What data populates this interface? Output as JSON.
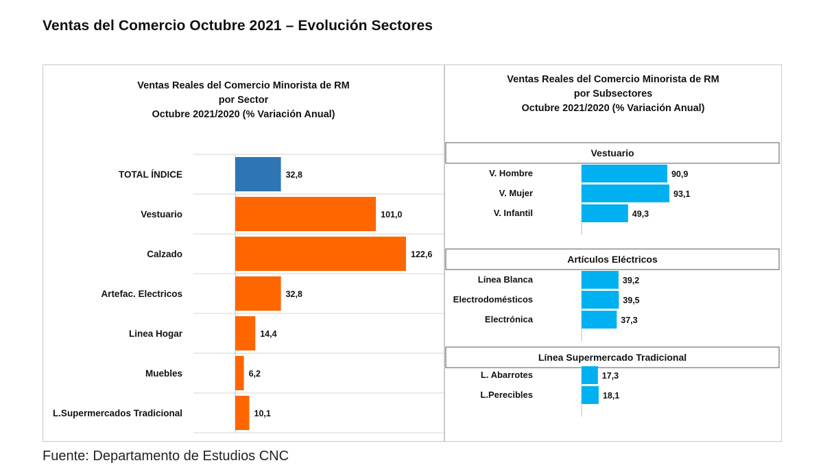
{
  "page": {
    "title": "Ventas del Comercio Octubre 2021 – Evolución Sectores",
    "source": "Fuente: Departamento de Estudios CNC"
  },
  "chart_data": [
    {
      "type": "bar",
      "orientation": "horizontal",
      "title": [
        "Ventas Reales del Comercio Minorista de RM",
        "por Sector",
        "Octubre 2021/2020 (% Variación Anual)"
      ],
      "categories": [
        "TOTAL ÍNDICE",
        "Vestuario",
        "Calzado",
        "Artefac. Electricos",
        "Linea Hogar",
        "Muebles",
        "L.Supermercados Tradicional"
      ],
      "values": [
        32.8,
        101.0,
        122.6,
        32.8,
        14.4,
        6.2,
        10.1
      ],
      "value_labels": [
        "32,8",
        "101,0",
        "122,6",
        "32,8",
        "14,4",
        "6,2",
        "10,1"
      ],
      "colors": [
        "#2e75b6",
        "#ff6600",
        "#ff6600",
        "#ff6600",
        "#ff6600",
        "#ff6600",
        "#ff6600"
      ],
      "xlim": [
        0,
        135
      ],
      "grid": true,
      "legend": "none"
    },
    {
      "type": "bar",
      "orientation": "horizontal",
      "title": [
        "Ventas Reales del Comercio Minorista de RM",
        "por Subsectores",
        "Octubre 2021/2020 (% Variación Anual)"
      ],
      "color": "#00b0f0",
      "xlim": [
        0,
        135
      ],
      "legend": "none",
      "groups": [
        {
          "name": "Vestuario",
          "categories": [
            "V. Hombre",
            "V. Mujer",
            "V. Infantil"
          ],
          "values": [
            90.9,
            93.1,
            49.3
          ],
          "value_labels": [
            "90,9",
            "93,1",
            "49,3"
          ]
        },
        {
          "name": "Artículos Eléctricos",
          "categories": [
            "Línea Blanca",
            "Electrodomésticos",
            "Electrónica"
          ],
          "values": [
            39.2,
            39.5,
            37.3
          ],
          "value_labels": [
            "39,2",
            "39,5",
            "37,3"
          ]
        },
        {
          "name": "Línea Supermercado Tradicional",
          "categories": [
            "L. Abarrotes",
            "L.Perecibles"
          ],
          "values": [
            17.3,
            18.1
          ],
          "value_labels": [
            "17,3",
            "18,1"
          ]
        }
      ]
    }
  ]
}
